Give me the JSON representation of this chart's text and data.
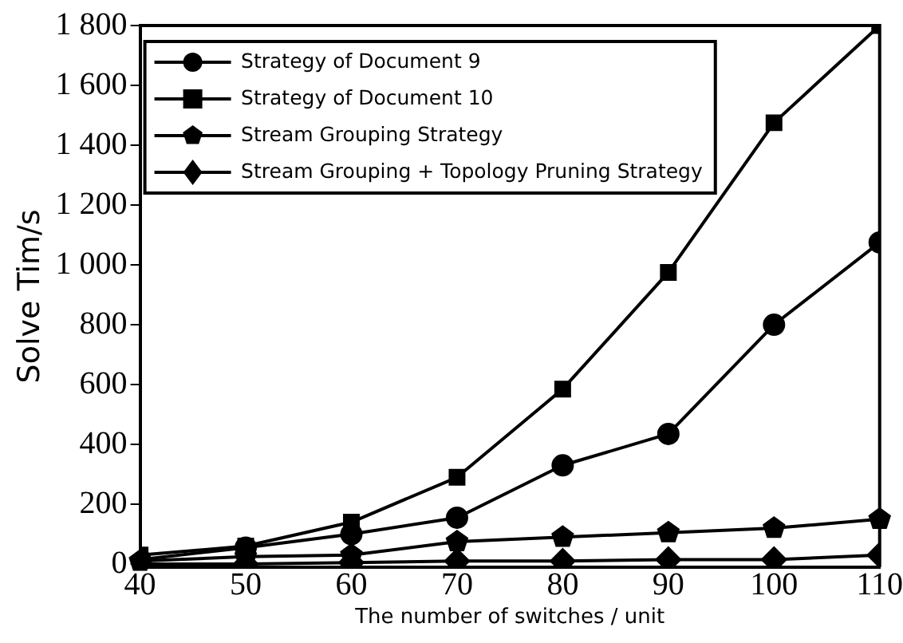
{
  "chart_data": {
    "type": "line",
    "xlabel": "The number of switches / unit",
    "ylabel": "Solve Tim/s",
    "x": [
      40,
      50,
      60,
      70,
      80,
      90,
      100,
      110
    ],
    "series": [
      {
        "name": "Strategy of Document 9",
        "color": "#000000",
        "marker": "circle",
        "values": [
          15,
          55,
          100,
          155,
          330,
          435,
          800,
          1075
        ]
      },
      {
        "name": "Strategy of Document 10",
        "color": "#000000",
        "marker": "square",
        "values": [
          30,
          60,
          140,
          290,
          585,
          975,
          1475,
          1800
        ]
      },
      {
        "name": "Stream Grouping Strategy",
        "color": "#000000",
        "marker": "star",
        "values": [
          10,
          25,
          30,
          75,
          90,
          105,
          120,
          150
        ]
      },
      {
        "name": "Stream Grouping + Topology Pruning Strategy",
        "color": "#000000",
        "marker": "diamond",
        "values": [
          0,
          0,
          5,
          10,
          10,
          15,
          15,
          30
        ]
      }
    ],
    "xlim": [
      40,
      110
    ],
    "xticks": [
      40,
      50,
      60,
      70,
      80,
      90,
      100,
      110
    ],
    "ylim": [
      -10,
      1800
    ],
    "yticks": [
      0,
      200,
      400,
      600,
      800,
      {
        "value": 1000,
        "label": "1 000"
      },
      {
        "value": 1200,
        "label": "1 200"
      },
      {
        "value": 1400,
        "label": "1 400"
      },
      {
        "value": 1600,
        "label": "1 600"
      },
      {
        "value": 1800,
        "label": "1 800"
      }
    ],
    "grid": false,
    "legend": "top left",
    "line_style": "solid"
  }
}
